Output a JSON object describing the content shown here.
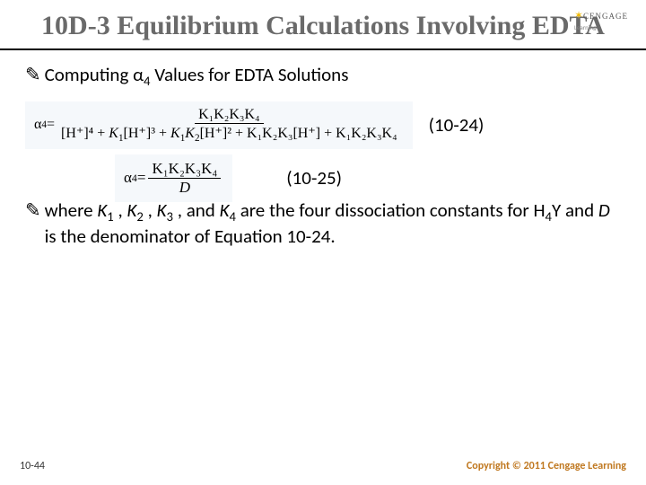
{
  "logo": {
    "brand": "CENGAGE",
    "sub": "Learning"
  },
  "title": "10D-3 Equilibrium Calculations Involving EDTA",
  "bullet1_prefix": "Computing α",
  "bullet1_sub": "4",
  "bullet1_suffix": " Values for EDTA Solutions",
  "eq1": {
    "lhs": "α",
    "lhs_sub": "4",
    "eq": " = ",
    "num": "K₁K₂K₃K₄",
    "den_t1": "[H⁺]⁴",
    "den_plus": " + ",
    "den_t2a": "K",
    "den_t2sub": "1",
    "den_t2b": "[H⁺]³",
    "den_t3a": "K",
    "den_t3s1": "1",
    "den_t3mid": "K",
    "den_t3s2": "2",
    "den_t3b": "[H⁺]²",
    "den_t4": "K₁K₂K₃[H⁺]",
    "den_t5": "K₁K₂K₃K₄",
    "label": "(10-24)"
  },
  "eq2": {
    "lhs": "α",
    "lhs_sub": "4",
    "eq": " = ",
    "num": "K₁K₂K₃K₄",
    "den": "D",
    "label": "(10-25)"
  },
  "body_prefix": "where ",
  "k1": "K",
  "k1s": "1",
  "comma": " , ",
  "k2": "K",
  "k2s": "2",
  "k3": "K",
  "k3s": "3",
  "and": " , and ",
  "k4": "K",
  "k4s": "4",
  "body_mid": " are the four dissociation constants for H",
  "h4s": "4",
  "body_y": "Y and ",
  "body_d": "D",
  "body_end": " is the denominator of Equation 10-24.",
  "page": "10-44",
  "copyright": "Copyright © 2011 Cengage Learning"
}
